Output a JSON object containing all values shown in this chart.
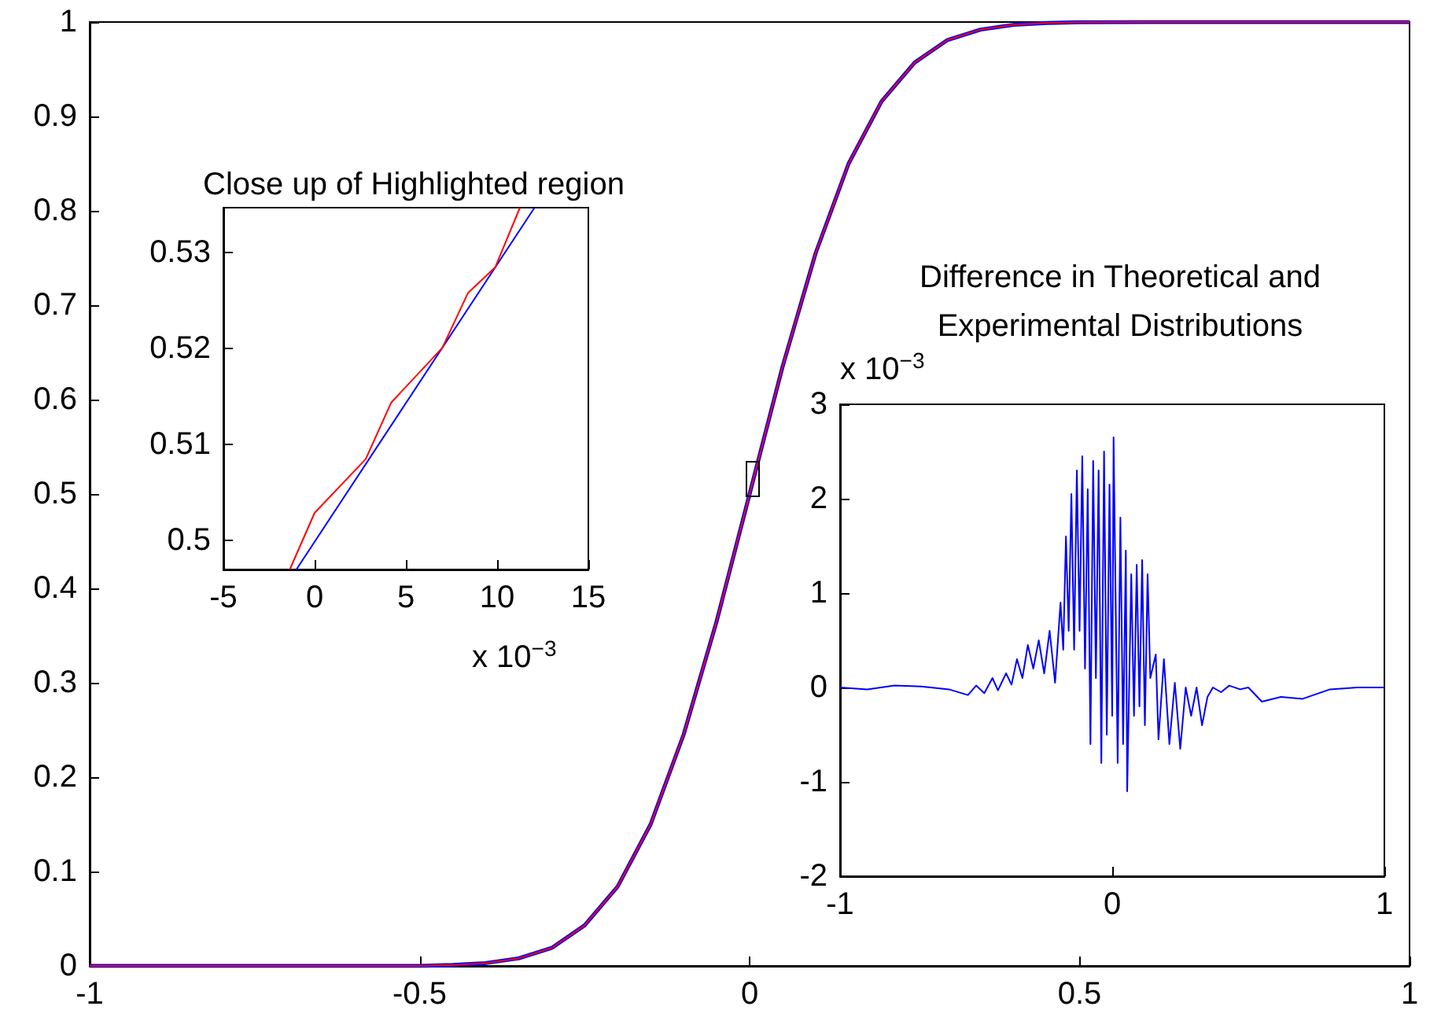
{
  "chart_data": [
    {
      "type": "line",
      "x": [
        -1,
        -0.8,
        -0.6,
        -0.5,
        -0.45,
        -0.4,
        -0.35,
        -0.3,
        -0.25,
        -0.2,
        -0.15,
        -0.1,
        -0.05,
        0,
        0.05,
        0.1,
        0.15,
        0.2,
        0.25,
        0.3,
        0.35,
        0.4,
        0.45,
        0.5,
        0.6,
        0.8,
        1
      ],
      "series": [
        {
          "color": "#0000ff",
          "values": [
            0,
            0,
            0,
            0,
            0.001,
            0.003,
            0.008,
            0.019,
            0.043,
            0.084,
            0.15,
            0.245,
            0.365,
            0.5,
            0.635,
            0.755,
            0.85,
            0.916,
            0.957,
            0.981,
            0.992,
            0.997,
            0.999,
            0.9997,
            1,
            1,
            1
          ]
        },
        {
          "color": "#ff0000",
          "values": [
            0,
            0,
            0,
            0,
            0.001,
            0.003,
            0.008,
            0.019,
            0.043,
            0.084,
            0.15,
            0.245,
            0.365,
            0.5,
            0.635,
            0.755,
            0.85,
            0.916,
            0.957,
            0.981,
            0.992,
            0.997,
            0.999,
            0.9997,
            1,
            1,
            1
          ]
        }
      ],
      "xlim": [
        -1,
        1
      ],
      "xticks": [
        -1,
        -0.5,
        0,
        0.5,
        1
      ],
      "ylim": [
        0,
        1
      ],
      "yticks": [
        0,
        0.1,
        0.2,
        0.3,
        0.4,
        0.5,
        0.6,
        0.7,
        0.8,
        0.9,
        1
      ]
    },
    {
      "type": "line",
      "title": "Close up of Highlighted region",
      "series": [
        {
          "color": "#0000ff",
          "x": [
            -1.0,
            12.05
          ],
          "values": [
            0.497,
            0.5347
          ]
        },
        {
          "color": "#ff0000",
          "x": [
            -1.36,
            0.0,
            2.8,
            4.2,
            7.0,
            8.4,
            9.9,
            11.25
          ],
          "values": [
            0.497,
            0.5029,
            0.5085,
            0.5144,
            0.5201,
            0.5258,
            0.5285,
            0.5347
          ]
        }
      ],
      "xlim": [
        -5,
        15
      ],
      "xticks": [
        -5,
        0,
        5,
        10,
        15
      ],
      "ylim": [
        0.497,
        0.5347
      ],
      "yticks": [
        0.5,
        0.51,
        0.52,
        0.53
      ],
      "annotations": [
        "x 10$^{−3}$"
      ]
    },
    {
      "type": "line",
      "title": "Difference in Theoretical and\nExperimental Distributions",
      "x": [
        -1,
        -0.9,
        -0.8,
        -0.7,
        -0.6,
        -0.53,
        -0.5,
        -0.47,
        -0.44,
        -0.42,
        -0.39,
        -0.37,
        -0.35,
        -0.33,
        -0.31,
        -0.29,
        -0.27,
        -0.25,
        -0.23,
        -0.21,
        -0.19,
        -0.18,
        -0.17,
        -0.16,
        -0.15,
        -0.14,
        -0.13,
        -0.12,
        -0.11,
        -0.1,
        -0.09,
        -0.08,
        -0.07,
        -0.06,
        -0.05,
        -0.04,
        -0.03,
        -0.02,
        -0.01,
        0,
        0.005,
        0.02,
        0.03,
        0.04,
        0.05,
        0.055,
        0.07,
        0.08,
        0.09,
        0.1,
        0.11,
        0.12,
        0.13,
        0.14,
        0.16,
        0.17,
        0.19,
        0.21,
        0.23,
        0.25,
        0.27,
        0.29,
        0.31,
        0.33,
        0.35,
        0.37,
        0.4,
        0.43,
        0.47,
        0.5,
        0.55,
        0.62,
        0.7,
        0.8,
        0.9,
        1
      ],
      "series": [
        {
          "color": "#0000ff",
          "values": [
            0,
            -0.02,
            0.02,
            0.01,
            -0.02,
            -0.08,
            0.02,
            -0.06,
            0.1,
            -0.03,
            0.15,
            0.03,
            0.3,
            0.1,
            0.45,
            0.2,
            0.5,
            0.15,
            0.6,
            0.05,
            0.9,
            0.4,
            1.6,
            0.6,
            2.05,
            0.4,
            2.3,
            0.6,
            2.45,
            0.2,
            2.1,
            -0.6,
            2.4,
            0.1,
            2.3,
            -0.8,
            2.5,
            -0.5,
            2.15,
            -0.3,
            2.65,
            -0.8,
            1.8,
            -0.6,
            1.45,
            -1.1,
            1.2,
            -0.3,
            1.3,
            -0.2,
            1.35,
            -0.4,
            1.2,
            0.1,
            0.35,
            -0.55,
            0.3,
            -0.6,
            0.05,
            -0.65,
            0,
            -0.3,
            0,
            -0.4,
            -0.1,
            0,
            -0.05,
            0.02,
            -0.02,
            0,
            -0.15,
            -0.1,
            -0.12,
            -0.02,
            0,
            0
          ]
        }
      ],
      "xlim": [
        -1,
        1
      ],
      "xticks": [
        -1,
        0,
        1
      ],
      "ylim": [
        -2,
        3
      ],
      "yticks": [
        -2,
        -1,
        0,
        1,
        2,
        3
      ],
      "annotations": [
        "x 10$^{−3}$"
      ]
    }
  ]
}
